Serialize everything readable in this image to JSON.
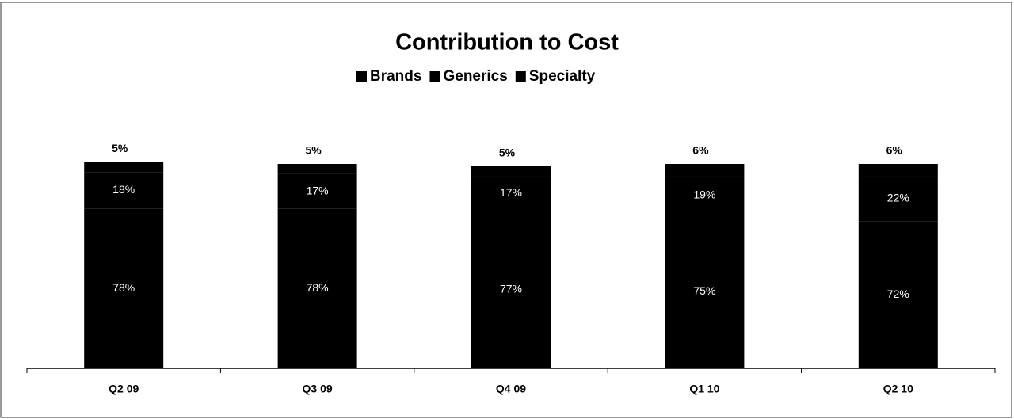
{
  "chart_data": {
    "type": "bar",
    "stacked": true,
    "title": "Contribution to Cost",
    "categories": [
      "Q2 09",
      "Q3 09",
      "Q4 09",
      "Q1 10",
      "Q2 10"
    ],
    "series": [
      {
        "name": "Brands",
        "color": "#000000",
        "values": [
          78,
          78,
          77,
          75,
          72
        ],
        "value_labels": [
          "78%",
          "78%",
          "77%",
          "75%",
          "72%"
        ]
      },
      {
        "name": "Generics",
        "color": "#000000",
        "values": [
          18,
          17,
          17,
          19,
          22
        ],
        "value_labels": [
          "18%",
          "17%",
          "17%",
          "19%",
          "22%"
        ]
      },
      {
        "name": "Specialty",
        "color": "#000000",
        "values": [
          5,
          5,
          5,
          6,
          6
        ],
        "value_labels": [
          "5%",
          "5%",
          "5%",
          "6%",
          "6%"
        ]
      }
    ],
    "ylim": [
      0,
      100
    ],
    "legend": "top"
  }
}
